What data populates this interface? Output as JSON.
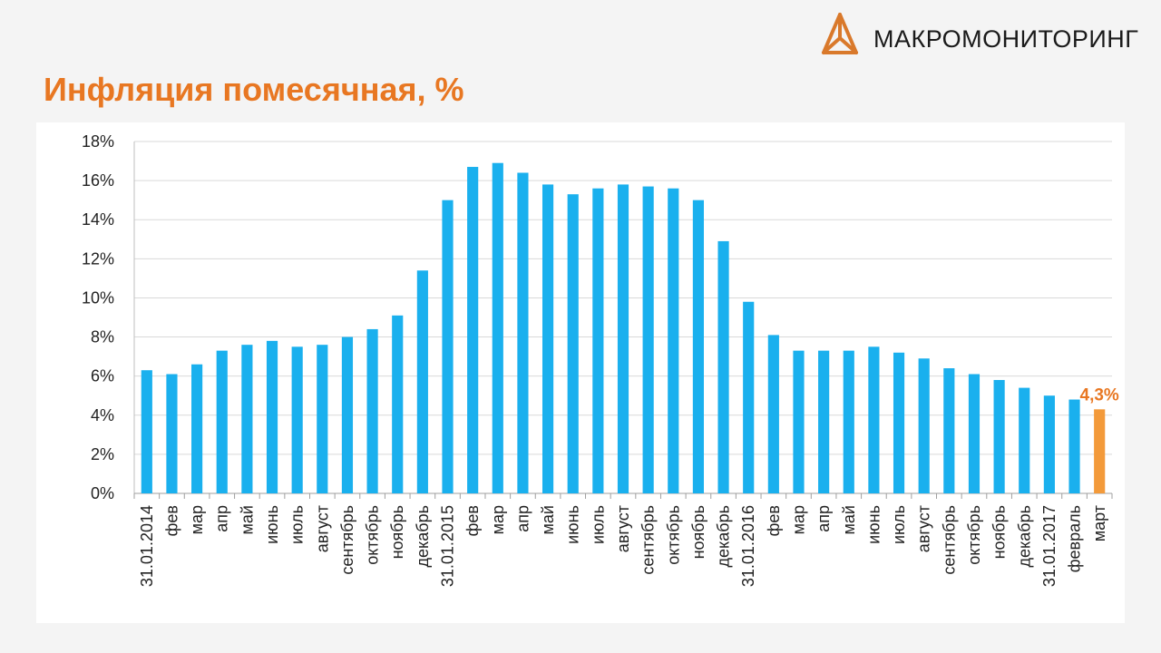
{
  "header": {
    "logo_text": "МАКРОМОНИТОРИНГ",
    "title": "Инфляция помесячная, %"
  },
  "colors": {
    "accent": "#e87722",
    "bar": "#1ab0ee",
    "highlight_bar": "#f39a3a",
    "grid": "#d9d9d9"
  },
  "chart_data": {
    "type": "bar",
    "title": "Инфляция помесячная, %",
    "xlabel": "",
    "ylabel": "",
    "ylim": [
      0,
      18
    ],
    "y_ticks": [
      "0%",
      "2%",
      "4%",
      "6%",
      "8%",
      "10%",
      "12%",
      "14%",
      "16%",
      "18%"
    ],
    "grid": true,
    "legend": "none",
    "categories": [
      "31.01.2014",
      "фев",
      "мар",
      "апр",
      "май",
      "июнь",
      "июль",
      "август",
      "сентябрь",
      "октябрь",
      "ноябрь",
      "декабрь",
      "31.01.2015",
      "фев",
      "мар",
      "апр",
      "май",
      "июнь",
      "июль",
      "август",
      "сентябрь",
      "октябрь",
      "ноябрь",
      "декабрь",
      "31.01.2016",
      "фев",
      "мар",
      "апр",
      "май",
      "июнь",
      "июль",
      "август",
      "сентябрь",
      "октябрь",
      "ноябрь",
      "декабрь",
      "31.01.2017",
      "февраль",
      "март"
    ],
    "values": [
      6.3,
      6.1,
      6.6,
      7.3,
      7.6,
      7.8,
      7.5,
      7.6,
      8.0,
      8.4,
      9.1,
      11.4,
      15.0,
      16.7,
      16.9,
      16.4,
      15.8,
      15.3,
      15.6,
      15.8,
      15.7,
      15.6,
      15.0,
      12.9,
      9.8,
      8.1,
      7.3,
      7.3,
      7.3,
      7.5,
      7.2,
      6.9,
      6.4,
      6.1,
      5.8,
      5.4,
      5.0,
      4.8,
      4.3
    ],
    "highlight_index": 38,
    "data_labels": [
      {
        "index": 38,
        "text": "4,3%"
      }
    ]
  }
}
